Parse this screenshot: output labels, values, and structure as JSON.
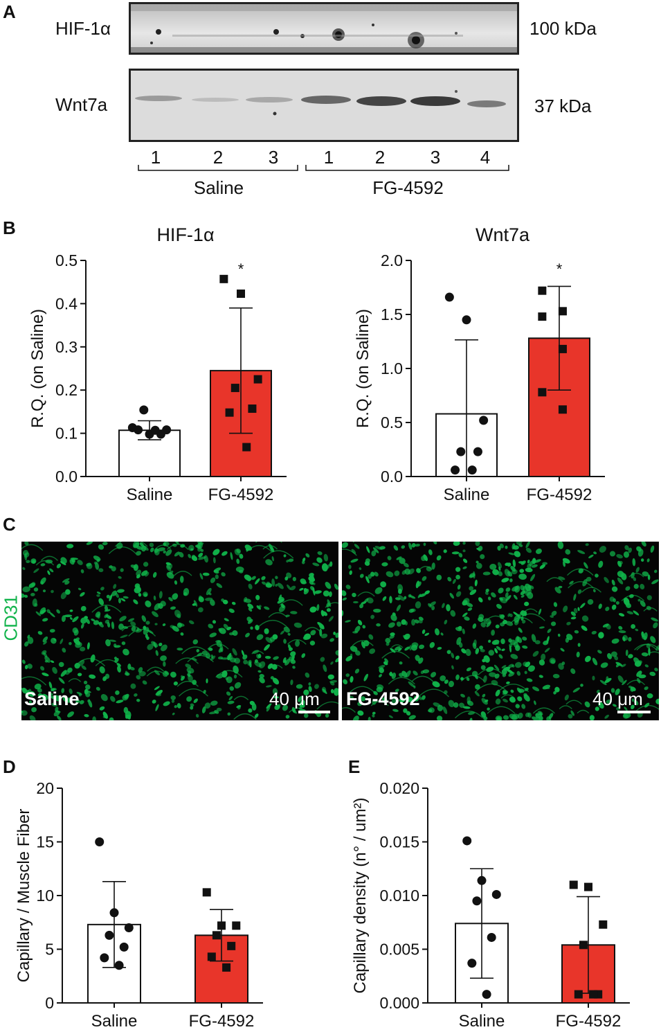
{
  "panel_labels": [
    "A",
    "B",
    "C",
    "D",
    "E"
  ],
  "western_blot": {
    "rows": [
      {
        "name": "HIF-1α",
        "mw": "100 kDa"
      },
      {
        "name": "Wnt7a",
        "mw": "37 kDa"
      }
    ],
    "lanes": [
      "1",
      "2",
      "3",
      "1",
      "2",
      "3",
      "4"
    ],
    "groups": [
      "Saline",
      "FG-4592"
    ]
  },
  "microscopy": {
    "stain_label": "CD31",
    "panels": [
      {
        "label": "Saline",
        "scale": "40 μm"
      },
      {
        "label": "FG-4592",
        "scale": "40 μm"
      }
    ]
  },
  "colors": {
    "saline_bar": "#ffffff",
    "fg_bar": "#e8352a",
    "axis": "#111111",
    "cd31_green": "#10b34a"
  },
  "chart_data": [
    {
      "type": "bar",
      "panel": "B",
      "title": "HIF-1α",
      "ylabel": "R.Q. (on Saline)",
      "categories": [
        "Saline",
        "FG-4592"
      ],
      "values": [
        0.107,
        0.245
      ],
      "errors": [
        0.022,
        0.145
      ],
      "significance": [
        "",
        "*"
      ],
      "ylim": [
        0,
        0.5
      ],
      "yticks": [
        "0.0",
        "0.1",
        "0.2",
        "0.3",
        "0.4",
        "0.5"
      ],
      "yticks_val": [
        0,
        0.1,
        0.2,
        0.3,
        0.4,
        0.5
      ],
      "points": [
        {
          "marker": "circle",
          "values": [
            0.113,
            0.098,
            0.108,
            0.154,
            0.098,
            0.108,
            0.107
          ]
        },
        {
          "marker": "square",
          "values": [
            0.457,
            0.423,
            0.225,
            0.205,
            0.157,
            0.148,
            0.068
          ]
        }
      ]
    },
    {
      "type": "bar",
      "panel": "B",
      "title": "Wnt7a",
      "ylabel": "R.Q. (on Saline)",
      "categories": [
        "Saline",
        "FG-4592"
      ],
      "values": [
        0.58,
        1.28
      ],
      "errors": [
        0.685,
        0.48
      ],
      "significance": [
        "",
        "*"
      ],
      "ylim": [
        0,
        2.0
      ],
      "yticks": [
        "0.0",
        "0.5",
        "1.0",
        "1.5",
        "2.0"
      ],
      "yticks_val": [
        0,
        0.5,
        1.0,
        1.5,
        2.0
      ],
      "points": [
        {
          "marker": "circle",
          "values": [
            1.66,
            1.45,
            0.52,
            0.23,
            0.23,
            0.06,
            0.06
          ]
        },
        {
          "marker": "square",
          "values": [
            1.72,
            1.53,
            1.48,
            1.18,
            0.78,
            0.62
          ]
        }
      ]
    },
    {
      "type": "bar",
      "panel": "D",
      "title": "",
      "ylabel": "Capillary / Muscle Fiber",
      "categories": [
        "Saline",
        "FG-4592"
      ],
      "values": [
        7.3,
        6.3
      ],
      "errors": [
        4.0,
        2.4
      ],
      "significance": [
        "",
        ""
      ],
      "ylim": [
        0,
        20
      ],
      "yticks": [
        "0",
        "5",
        "10",
        "15",
        "20"
      ],
      "yticks_val": [
        0,
        5,
        10,
        15,
        20
      ],
      "points": [
        {
          "marker": "circle",
          "values": [
            15.0,
            8.4,
            7.0,
            6.3,
            5.2,
            4.2,
            3.5
          ]
        },
        {
          "marker": "square",
          "values": [
            10.3,
            7.2,
            7.2,
            6.3,
            5.3,
            4.3,
            3.3
          ]
        }
      ]
    },
    {
      "type": "bar",
      "panel": "E",
      "title": "",
      "ylabel": "Capillary density (n° / um²)",
      "categories": [
        "Saline",
        "FG-4592"
      ],
      "values": [
        0.0074,
        0.0054
      ],
      "errors": [
        0.0051,
        0.0045
      ],
      "significance": [
        "",
        ""
      ],
      "ylim": [
        0,
        0.02
      ],
      "yticks": [
        "0.000",
        "0.005",
        "0.010",
        "0.015",
        "0.020"
      ],
      "yticks_val": [
        0,
        0.005,
        0.01,
        0.015,
        0.02
      ],
      "points": [
        {
          "marker": "circle",
          "values": [
            0.0151,
            0.0114,
            0.0101,
            0.0095,
            0.0061,
            0.0037,
            0.0008
          ]
        },
        {
          "marker": "square",
          "values": [
            0.011,
            0.0108,
            0.0073,
            0.0054,
            0.0008,
            0.0008,
            0.0008
          ]
        }
      ]
    }
  ]
}
